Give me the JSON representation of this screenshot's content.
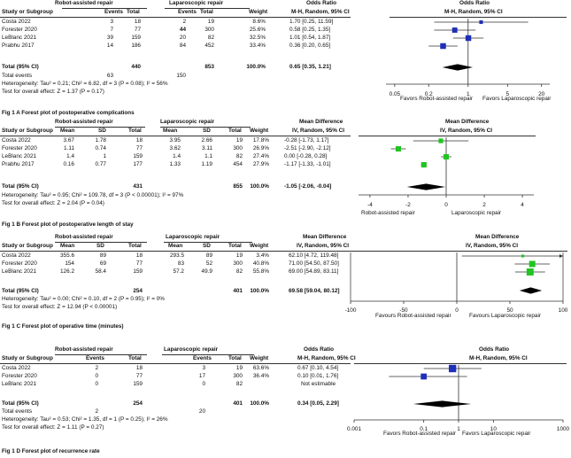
{
  "panels": [
    {
      "id": "A",
      "group1_header": "Robot-assisted repair",
      "group2_header": "Laparoscopic repair",
      "col_headers": [
        "Study or Subgroup",
        "Events",
        "Total",
        "Events",
        "Total",
        "Weight"
      ],
      "effect_header_1": "Odds Ratio",
      "effect_header_2": "M-H, Random, 95% CI",
      "plot_header_1": "Odds Ratio",
      "plot_header_2": "M-H, Random, 95% CI",
      "rows": [
        {
          "study": "Costa 2022",
          "c1": "3",
          "c2": "18",
          "c3": "2",
          "c4": "19",
          "w": "8.6%",
          "ci": "1.70 [0.25, 11.59]"
        },
        {
          "study": "Forester 2020",
          "c1": "7",
          "c2": "77",
          "c3": "44",
          "c4": "300",
          "w": "25.6%",
          "ci": "0.58 [0.25, 1.35]"
        },
        {
          "study": "LeBlanc 2021",
          "c1": "39",
          "c2": "159",
          "c3": "20",
          "c4": "82",
          "w": "32.5%",
          "ci": "1.01 [0.54, 1.87]"
        },
        {
          "study": "Prabhu 2017",
          "c1": "14",
          "c2": "186",
          "c3": "84",
          "c4": "452",
          "w": "33.4%",
          "ci": "0.36 [0.20, 0.65]"
        }
      ],
      "total_label": "Total (95% CI)",
      "total_n1": "440",
      "total_n2": "853",
      "total_w": "100.0%",
      "total_ci": "0.65 [0.35, 1.21]",
      "events_label": "Total events",
      "events1": "63",
      "events2": "150",
      "heterogeneity": "Heterogeneity: Tau² = 0.21; Chi² = 6.82, df = 3 (P = 0.08); I² = 56%",
      "overall": "Test for overall effect: Z = 1.37 (P = 0.17)",
      "favors_left": "Favors Robot-assisted repair",
      "favors_right": "Favors Laparoscopic repair",
      "caption": "Fig 1 A  Forest plot of postoperative complications"
    },
    {
      "id": "B",
      "group1_header": "Robot-assisted repair",
      "group2_header": "Laparoscopic repair",
      "col_headers": [
        "Study or Subgroup",
        "Mean",
        "SD",
        "Total",
        "Mean",
        "SD",
        "Total",
        "Weight"
      ],
      "effect_header_1": "Mean Difference",
      "effect_header_2": "IV, Random, 95% CI",
      "plot_header_1": "Mean Difference",
      "plot_header_2": "IV, Random, 95% CI",
      "rows": [
        {
          "study": "Costa 2022",
          "m1": "3.67",
          "s1": "1.78",
          "n1": "18",
          "m2": "3.95",
          "s2": "2.66",
          "n2": "19",
          "w": "17.8%",
          "ci": "-0.28 [-1.73, 1.17]"
        },
        {
          "study": "Forester 2020",
          "m1": "1.11",
          "s1": "0.74",
          "n1": "77",
          "m2": "3.62",
          "s2": "3.11",
          "n2": "300",
          "w": "26.9%",
          "ci": "-2.51 [-2.90, -2.12]"
        },
        {
          "study": "LeBlanc 2021",
          "m1": "1.4",
          "s1": "1",
          "n1": "159",
          "m2": "1.4",
          "s2": "1.1",
          "n2": "82",
          "w": "27.4%",
          "ci": "0.00 [-0.28, 0.28]"
        },
        {
          "study": "Prabhu 2017",
          "m1": "0.16",
          "s1": "0.77",
          "n1": "177",
          "m2": "1.33",
          "s2": "1.19",
          "n2": "454",
          "w": "27.9%",
          "ci": "-1.17 [-1.33, -1.01]"
        }
      ],
      "total_label": "Total (95% CI)",
      "total_n1": "431",
      "total_n2": "855",
      "total_w": "100.0%",
      "total_ci": "-1.05 [-2.06, -0.04]",
      "heterogeneity": "Heterogeneity: Tau² = 0.95; Chi² = 109.78, df = 3 (P < 0.00001); I² = 97%",
      "overall": "Test for overall effect: Z = 2.04 (P = 0.04)",
      "favors_left": "Robot-assisted repair",
      "favors_right": "Laparoscopic repair",
      "caption": "Fig 1 B  Forest plot of postoperative length of stay"
    },
    {
      "id": "C",
      "group1_header": "Robot-assisted repair",
      "group2_header": "Laparoscopic repair",
      "col_headers": [
        "Study or Subgroup",
        "Mean",
        "SD",
        "Total",
        "Mean",
        "SD",
        "Total",
        "Weight"
      ],
      "effect_header_1": "Mean Difference",
      "effect_header_2": "IV, Random, 95% CI",
      "plot_header_1": "Mean Difference",
      "plot_header_2": "IV, Random, 95% CI",
      "rows": [
        {
          "study": "Costa 2022",
          "m1": "355.6",
          "s1": "89",
          "n1": "18",
          "m2": "293.5",
          "s2": "89",
          "n2": "19",
          "w": "3.4%",
          "ci": "62.10 [4.72, 119.48]"
        },
        {
          "study": "Forester 2020",
          "m1": "154",
          "s1": "69",
          "n1": "77",
          "m2": "83",
          "s2": "52",
          "n2": "300",
          "w": "40.8%",
          "ci": "71.00 [54.50, 87.50]"
        },
        {
          "study": "LeBlanc 2021",
          "m1": "126.2",
          "s1": "58.4",
          "n1": "159",
          "m2": "57.2",
          "s2": "49.9",
          "n2": "82",
          "w": "55.8%",
          "ci": "69.00 [54.89, 83.11]"
        }
      ],
      "total_label": "Total (95% CI)",
      "total_n1": "254",
      "total_n2": "401",
      "total_w": "100.0%",
      "total_ci": "69.58 [59.04, 80.12]",
      "heterogeneity": "Heterogeneity: Tau² = 0.00; Chi² = 0.10, df = 2 (P = 0.95); I² = 0%",
      "overall": "Test for overall effect: Z = 12.94 (P < 0.00001)",
      "favors_left": "Favours Robot-assisted repair",
      "favors_right": "Favours Laparoscopic repair",
      "caption": "Fig 1 C  Forest plot of operative time (minutes)"
    },
    {
      "id": "D",
      "group1_header": "Robot-assisted repair",
      "group2_header": "Laparoscopic repair",
      "col_headers": [
        "Study or Subgroup",
        "Events",
        "Total",
        "Events",
        "Total",
        "Weight"
      ],
      "effect_header_1": "Odds Ratio",
      "effect_header_2": "M-H, Random, 95% CI",
      "plot_header_1": "Odds Ratio",
      "plot_header_2": "M-H, Random, 95% CI",
      "rows": [
        {
          "study": "Costa 2022",
          "c1": "2",
          "c2": "18",
          "c3": "3",
          "c4": "19",
          "w": "63.6%",
          "ci": "0.67 [0.10, 4.54]"
        },
        {
          "study": "Forester 2020",
          "c1": "0",
          "c2": "77",
          "c3": "17",
          "c4": "300",
          "w": "36.4%",
          "ci": "0.10 [0.01, 1.76]"
        },
        {
          "study": "LeBlanc 2021",
          "c1": "0",
          "c2": "159",
          "c3": "0",
          "c4": "82",
          "w": "",
          "ci": "Not estimable"
        }
      ],
      "total_label": "Total (95% CI)",
      "total_n1": "254",
      "total_n2": "401",
      "total_w": "100.0%",
      "total_ci": "0.34 [0.05, 2.29]",
      "events_label": "Total events",
      "events1": "2",
      "events2": "20",
      "heterogeneity": "Heterogeneity: Tau² = 0.53; Chi² = 1.35, df = 1 (P = 0.25); I² = 26%",
      "overall": "Test for overall effect: Z = 1.11 (P = 0.27)",
      "favors_left": "Favors Robot-assisted repair",
      "favors_right": "Favors Laparoscopic repair",
      "caption": "Fig 1 D  Forest plot of recurrence rate"
    }
  ],
  "chart_data": [
    {
      "type": "forest",
      "title": "Forest plot of postoperative complications",
      "scale": "log",
      "axis_ticks": [
        0.05,
        0.2,
        1,
        5,
        20
      ],
      "axis_tick_labels": [
        "0.05",
        "0.2",
        "1",
        "5",
        "20"
      ],
      "xlim": [
        0.035,
        28
      ],
      "marker_color": "#1f2fb8",
      "studies": [
        {
          "name": "Costa 2022",
          "est": 1.7,
          "lo": 0.25,
          "hi": 11.59,
          "weight": 8.6
        },
        {
          "name": "Forester 2020",
          "est": 0.58,
          "lo": 0.25,
          "hi": 1.35,
          "weight": 25.6
        },
        {
          "name": "LeBlanc 2021",
          "est": 1.01,
          "lo": 0.54,
          "hi": 1.87,
          "weight": 32.5
        },
        {
          "name": "Prabhu 2017",
          "est": 0.36,
          "lo": 0.2,
          "hi": 0.65,
          "weight": 33.4
        }
      ],
      "pooled": {
        "est": 0.65,
        "lo": 0.35,
        "hi": 1.21
      }
    },
    {
      "type": "forest",
      "title": "Forest plot of postoperative length of stay",
      "scale": "linear",
      "axis_ticks": [
        -4,
        -2,
        0,
        2,
        4
      ],
      "axis_tick_labels": [
        "-4",
        "-2",
        "0",
        "2",
        "4"
      ],
      "xlim": [
        -4.6,
        4.6
      ],
      "marker_color": "#22c422",
      "studies": [
        {
          "name": "Costa 2022",
          "est": -0.28,
          "lo": -1.73,
          "hi": 1.17,
          "weight": 17.8
        },
        {
          "name": "Forester 2020",
          "est": -2.51,
          "lo": -2.9,
          "hi": -2.12,
          "weight": 26.9
        },
        {
          "name": "LeBlanc 2021",
          "est": 0.0,
          "lo": -0.28,
          "hi": 0.28,
          "weight": 27.4
        },
        {
          "name": "Prabhu 2017",
          "est": -1.17,
          "lo": -1.33,
          "hi": -1.01,
          "weight": 27.9
        }
      ],
      "pooled": {
        "est": -1.05,
        "lo": -2.06,
        "hi": -0.04
      }
    },
    {
      "type": "forest",
      "title": "Forest plot of operative time (minutes)",
      "scale": "linear",
      "axis_ticks": [
        -100,
        -50,
        0,
        50,
        100
      ],
      "axis_tick_labels": [
        "-100",
        "-50",
        "0",
        "50",
        "100"
      ],
      "xlim": [
        -100,
        100
      ],
      "marker_color": "#22c422",
      "studies": [
        {
          "name": "Costa 2022",
          "est": 62.1,
          "lo": 4.72,
          "hi": 119.48,
          "weight": 3.4
        },
        {
          "name": "Forester 2020",
          "est": 71.0,
          "lo": 54.5,
          "hi": 87.5,
          "weight": 40.8
        },
        {
          "name": "LeBlanc 2021",
          "est": 69.0,
          "lo": 54.89,
          "hi": 83.11,
          "weight": 55.8
        }
      ],
      "pooled": {
        "est": 69.58,
        "lo": 59.04,
        "hi": 80.12
      }
    },
    {
      "type": "forest",
      "title": "Forest plot of recurrence rate",
      "scale": "log",
      "axis_ticks": [
        0.001,
        0.1,
        1,
        10,
        1000
      ],
      "axis_tick_labels": [
        "0.001",
        "0.1",
        "1",
        "10",
        "1000"
      ],
      "xlim": [
        0.001,
        1000
      ],
      "marker_color": "#1f2fb8",
      "studies": [
        {
          "name": "Costa 2022",
          "est": 0.67,
          "lo": 0.1,
          "hi": 4.54,
          "weight": 63.6
        },
        {
          "name": "Forester 2020",
          "est": 0.1,
          "lo": 0.01,
          "hi": 1.76,
          "weight": 36.4
        },
        {
          "name": "LeBlanc 2021",
          "est": null,
          "lo": null,
          "hi": null,
          "weight": null
        }
      ],
      "pooled": {
        "est": 0.34,
        "lo": 0.05,
        "hi": 2.29
      }
    }
  ]
}
